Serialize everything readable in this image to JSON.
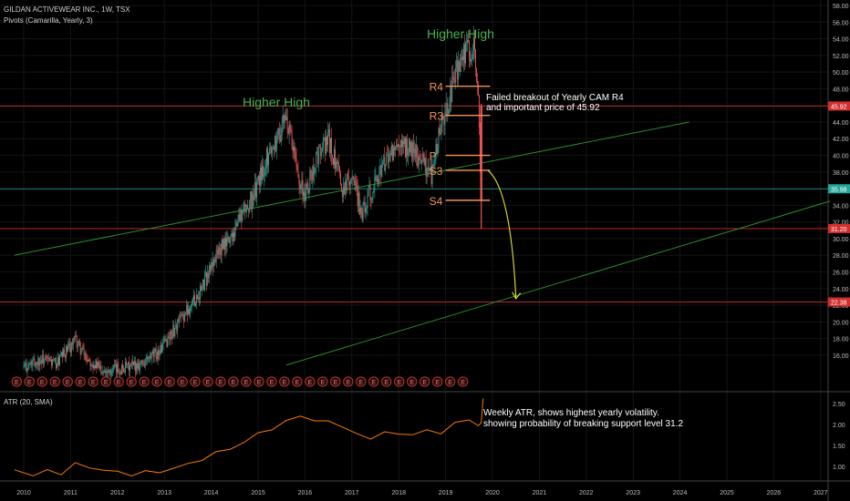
{
  "header": {
    "symbol_line": "GILDAN ACTIVEWEAR INC., 1W, TSX",
    "indicator_line": "Pivots (Camarilla, Yearly, 3)"
  },
  "atr_panel": {
    "label": "ATR (20, SMA)"
  },
  "annotations": {
    "higher_high_1": "Higher High",
    "higher_high_2": "Higher High",
    "breakout_note_1": "Failed breakout of Yearly CAM R4",
    "breakout_note_2": "and important price of 45.92",
    "atr_note_1": "Weekly ATR, shows highest yearly volatility.",
    "atr_note_2": "showing probability of breaking support level 31.2",
    "earnings_marker": "E"
  },
  "pivots": {
    "R4": {
      "label": "R4",
      "value": 48.3
    },
    "R3": {
      "label": "R3",
      "value": 44.8
    },
    "P": {
      "label": "P",
      "value": 40.0
    },
    "S3": {
      "label": "S3",
      "value": 38.2
    },
    "S4": {
      "label": "S4",
      "value": 34.6
    }
  },
  "chart_data": [
    {
      "type": "candlestick",
      "x_ticks": [
        "2010",
        "2011",
        "2012",
        "2013",
        "2014",
        "2015",
        "2016",
        "2017",
        "2018",
        "2019",
        "2020",
        "2021",
        "2022",
        "2023",
        "2024",
        "2025",
        "2026",
        "2027"
      ],
      "y_ticks": [
        "16.00",
        "18.00",
        "20.00",
        "22.00",
        "24.00",
        "26.00",
        "28.00",
        "30.00",
        "32.00",
        "34.00",
        "36.00",
        "38.00",
        "40.00",
        "42.00",
        "44.00",
        "46.00",
        "48.00",
        "50.00",
        "52.00",
        "54.00",
        "56.00",
        "58.00"
      ],
      "ylim": [
        14,
        58.6
      ],
      "price_series": {
        "x": [
          2010.0,
          2010.4,
          2010.7,
          2011.1,
          2011.3,
          2011.6,
          2011.9,
          2012.3,
          2012.6,
          2012.9,
          2013.2,
          2013.5,
          2013.8,
          2014.1,
          2014.4,
          2014.6,
          2014.9,
          2015.2,
          2015.4,
          2015.6,
          2015.8,
          2016.0,
          2016.2,
          2016.5,
          2016.8,
          2017.0,
          2017.2,
          2017.5,
          2017.8,
          2018.0,
          2018.2,
          2018.5,
          2018.7,
          2018.8,
          2019.0,
          2019.2,
          2019.4,
          2019.6,
          2019.65,
          2019.7,
          2019.75
        ],
        "y": [
          14.5,
          15.5,
          15.0,
          17.8,
          16.0,
          14.5,
          14.2,
          14.6,
          15.2,
          16.5,
          19.0,
          21.5,
          24.0,
          28.0,
          30.0,
          32.5,
          35.0,
          40.0,
          42.0,
          44.5,
          39.0,
          35.0,
          39.0,
          42.0,
          36.0,
          38.0,
          33.0,
          37.0,
          40.0,
          40.5,
          41.0,
          39.5,
          37.5,
          41.0,
          45.0,
          49.5,
          52.0,
          53.0,
          49.0,
          46.0,
          35.98
        ]
      },
      "reference_levels": [
        {
          "value": 45.92,
          "label": "45.92",
          "color": "#d32f2f"
        },
        {
          "value": 35.98,
          "label": "35.98",
          "color": "#26a69a"
        },
        {
          "value": 31.2,
          "label": "31.20",
          "color": "#d32f2f"
        },
        {
          "value": 22.38,
          "label": "22.38",
          "color": "#d32f2f"
        }
      ],
      "trendlines": [
        {
          "from": [
            2009.8,
            28.0
          ],
          "to": [
            2024.2,
            44.0
          ],
          "color": "#2e9b2e"
        },
        {
          "from": [
            2015.6,
            14.8
          ],
          "to": [
            2027.2,
            34.5
          ],
          "color": "#2e9b2e"
        }
      ],
      "projection_arrow": {
        "from": [
          2019.9,
          38.2
        ],
        "to": [
          2020.5,
          22.8
        ],
        "color": "#e6e62e"
      },
      "colors": {
        "up": "#26a69a",
        "down": "#ef5350",
        "pivot": "#f0935a",
        "annotation_green": "#4caf50"
      }
    },
    {
      "type": "line",
      "series_label": "ATR (20, SMA)",
      "y_ticks": [
        "1.00",
        "1.50",
        "2.00",
        "2.50"
      ],
      "ylim": [
        0.7,
        2.7
      ],
      "x": [
        2009.8,
        2010.2,
        2010.5,
        2010.8,
        2011.1,
        2011.4,
        2011.7,
        2012.0,
        2012.3,
        2012.6,
        2012.9,
        2013.2,
        2013.5,
        2013.8,
        2014.1,
        2014.4,
        2014.7,
        2015.0,
        2015.3,
        2015.6,
        2015.9,
        2016.2,
        2016.5,
        2016.8,
        2017.1,
        2017.4,
        2017.7,
        2018.0,
        2018.3,
        2018.6,
        2018.9,
        2019.2,
        2019.5,
        2019.7,
        2019.76,
        2019.8
      ],
      "y": [
        0.92,
        0.8,
        0.88,
        0.85,
        1.05,
        0.98,
        0.92,
        0.85,
        0.82,
        0.85,
        0.88,
        0.95,
        1.05,
        1.18,
        1.3,
        1.45,
        1.55,
        1.8,
        1.9,
        2.05,
        2.25,
        2.05,
        2.1,
        1.95,
        1.75,
        1.7,
        1.78,
        1.8,
        1.75,
        1.85,
        1.82,
        2.0,
        2.15,
        1.95,
        2.05,
        2.62
      ],
      "colors": {
        "line": "#f57c00"
      }
    }
  ]
}
